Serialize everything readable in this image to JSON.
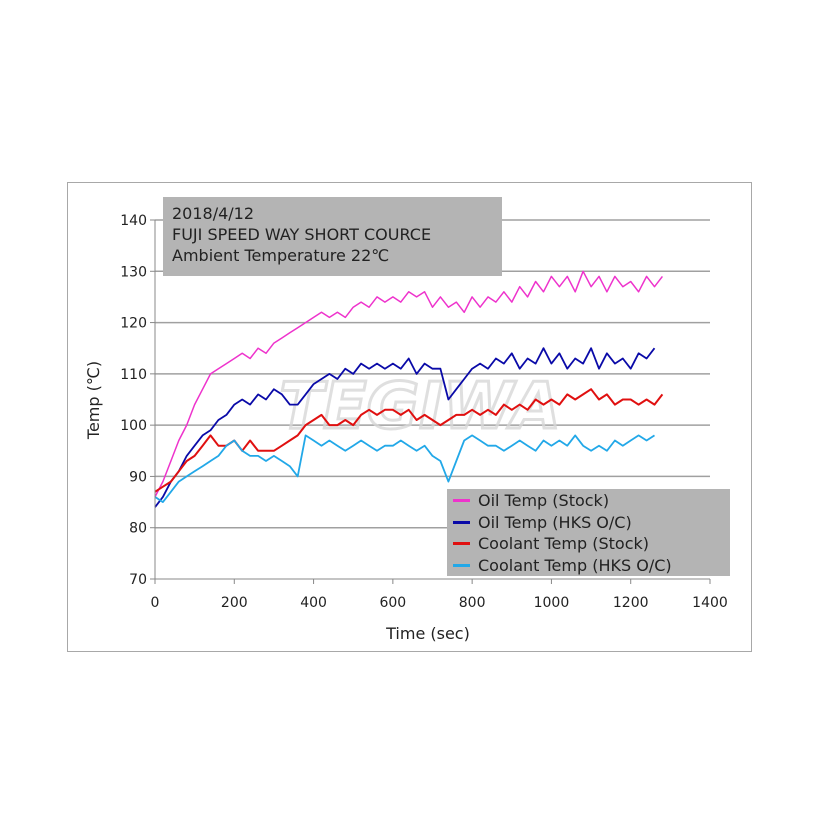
{
  "chart_data": {
    "type": "line",
    "annotation": [
      "2018/4/12",
      "FUJI SPEED WAY SHORT COURCE",
      "Ambient Temperature  22℃"
    ],
    "watermark": "TEGIWA",
    "xlabel": "Time (sec)",
    "ylabel": "Temp (℃)",
    "xlim": [
      0,
      1400
    ],
    "ylim": [
      70,
      140
    ],
    "xticks": [
      "0",
      "200",
      "400",
      "600",
      "800",
      "1000",
      "1200",
      "1400"
    ],
    "yticks": [
      "70",
      "80",
      "90",
      "100",
      "110",
      "120",
      "130",
      "140"
    ],
    "grid": "horizontal",
    "legend_position": "bottom-right",
    "x": [
      0,
      20,
      40,
      60,
      80,
      100,
      120,
      140,
      160,
      180,
      200,
      220,
      240,
      260,
      280,
      300,
      320,
      340,
      360,
      380,
      400,
      420,
      440,
      460,
      480,
      500,
      520,
      540,
      560,
      580,
      600,
      620,
      640,
      660,
      680,
      700,
      720,
      740,
      760,
      780,
      800,
      820,
      840,
      860,
      880,
      900,
      920,
      940,
      960,
      980,
      1000,
      1020,
      1040,
      1060,
      1080,
      1100,
      1120,
      1140,
      1160,
      1180,
      1200,
      1220,
      1240,
      1260,
      1280
    ],
    "series": [
      {
        "name": "Oil Temp (Stock)",
        "color": "#ee33cc",
        "width": 1.5,
        "values": [
          86,
          89,
          93,
          97,
          100,
          104,
          107,
          110,
          111,
          112,
          113,
          114,
          113,
          115,
          114,
          116,
          117,
          118,
          119,
          120,
          121,
          122,
          121,
          122,
          121,
          123,
          124,
          123,
          125,
          124,
          125,
          124,
          126,
          125,
          126,
          123,
          125,
          123,
          124,
          122,
          125,
          123,
          125,
          124,
          126,
          124,
          127,
          125,
          128,
          126,
          129,
          127,
          129,
          126,
          130,
          127,
          129,
          126,
          129,
          127,
          128,
          126,
          129,
          127,
          129
        ]
      },
      {
        "name": "Oil Temp (HKS O/C)",
        "color": "#0a0aa8",
        "width": 1.8,
        "values": [
          84,
          86,
          89,
          91,
          94,
          96,
          98,
          99,
          101,
          102,
          104,
          105,
          104,
          106,
          105,
          107,
          106,
          104,
          104,
          106,
          108,
          109,
          110,
          109,
          111,
          110,
          112,
          111,
          112,
          111,
          112,
          111,
          113,
          110,
          112,
          111,
          111,
          105,
          107,
          109,
          111,
          112,
          111,
          113,
          112,
          114,
          111,
          113,
          112,
          115,
          112,
          114,
          111,
          113,
          112,
          115,
          111,
          114,
          112,
          113,
          111,
          114,
          113,
          115,
          null
        ]
      },
      {
        "name": "Coolant Temp (Stock)",
        "color": "#e01010",
        "width": 2,
        "values": [
          87,
          88,
          89,
          91,
          93,
          94,
          96,
          98,
          96,
          96,
          97,
          95,
          97,
          95,
          95,
          95,
          96,
          97,
          98,
          100,
          101,
          102,
          100,
          100,
          101,
          100,
          102,
          103,
          102,
          103,
          103,
          102,
          103,
          101,
          102,
          101,
          100,
          101,
          102,
          102,
          103,
          102,
          103,
          102,
          104,
          103,
          104,
          103,
          105,
          104,
          105,
          104,
          106,
          105,
          106,
          107,
          105,
          106,
          104,
          105,
          105,
          104,
          105,
          104,
          106
        ]
      },
      {
        "name": "Coolant Temp (HKS O/C)",
        "color": "#22a8e8",
        "width": 1.8,
        "values": [
          86,
          85,
          87,
          89,
          90,
          91,
          92,
          93,
          94,
          96,
          97,
          95,
          94,
          94,
          93,
          94,
          93,
          92,
          90,
          98,
          97,
          96,
          97,
          96,
          95,
          96,
          97,
          96,
          95,
          96,
          96,
          97,
          96,
          95,
          96,
          94,
          93,
          89,
          93,
          97,
          98,
          97,
          96,
          96,
          95,
          96,
          97,
          96,
          95,
          97,
          96,
          97,
          96,
          98,
          96,
          95,
          96,
          95,
          97,
          96,
          97,
          98,
          97,
          98,
          null
        ]
      }
    ]
  }
}
